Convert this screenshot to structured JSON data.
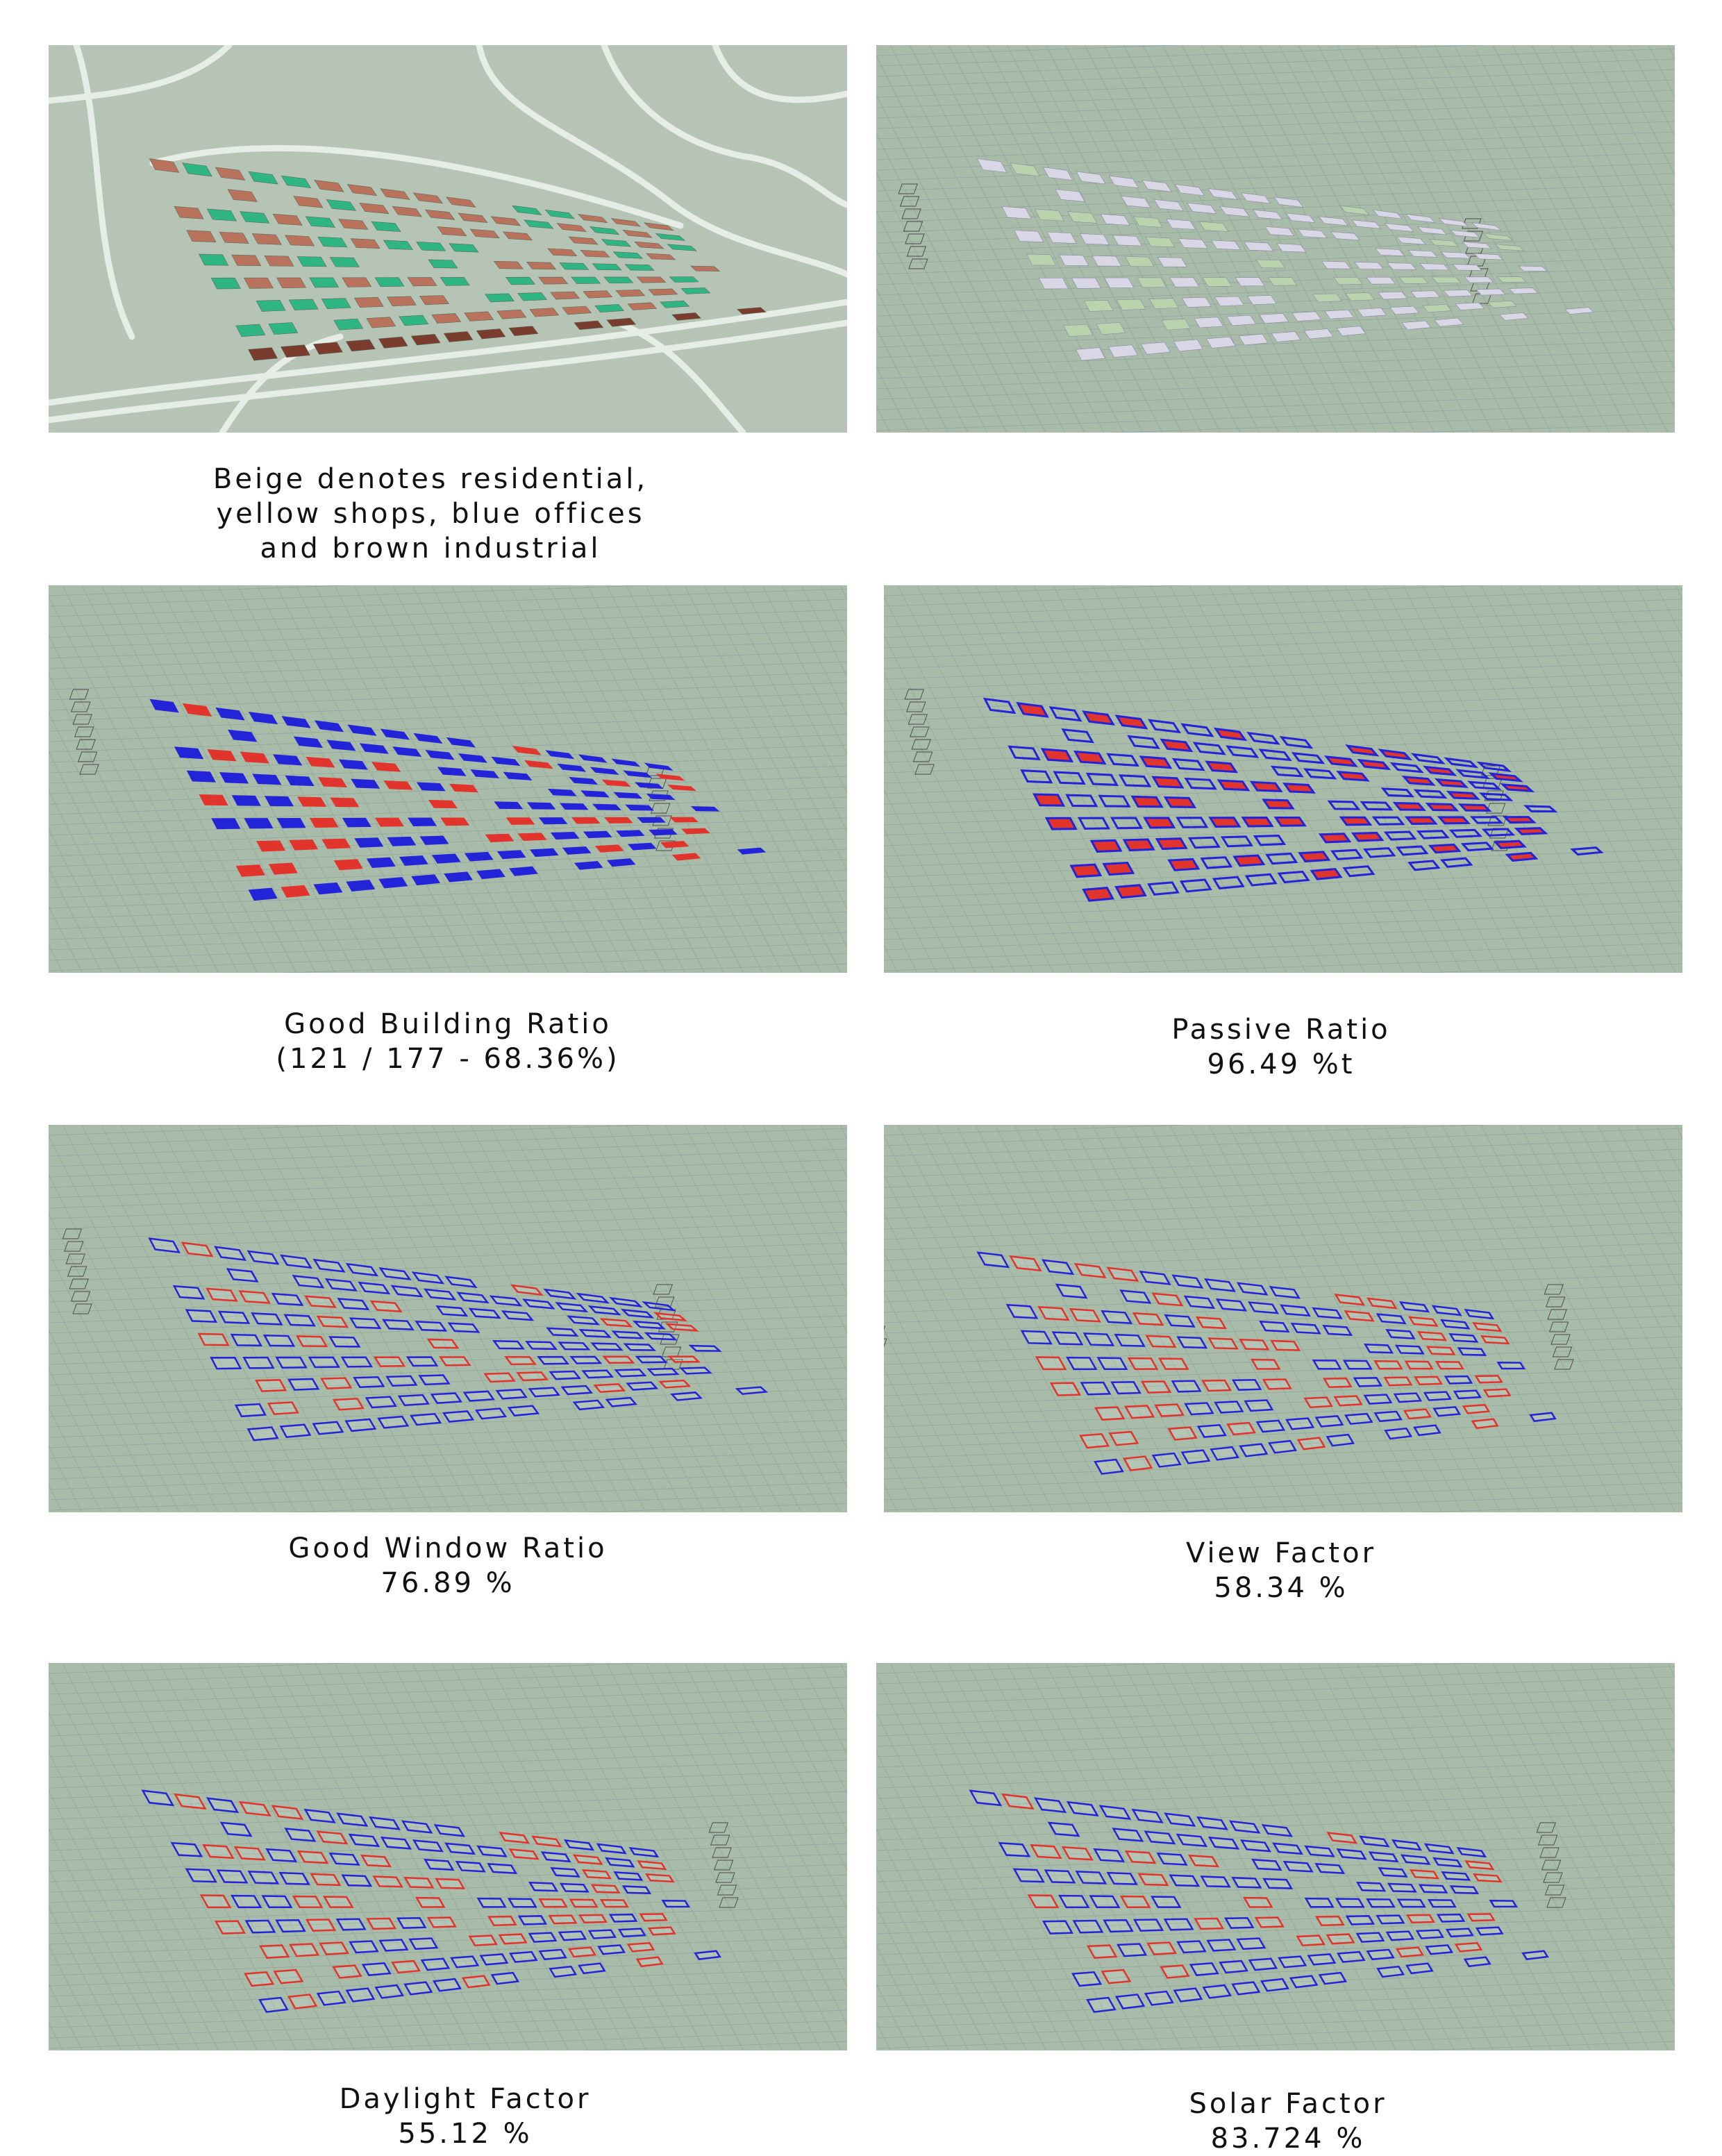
{
  "panels": [
    {
      "id": "landuse",
      "caption": [
        "Beige denotes residential,",
        "yellow shops, blue offices",
        "and brown industrial"
      ]
    },
    {
      "id": "massing",
      "caption": []
    },
    {
      "id": "good-building",
      "caption": [
        "Good Building Ratio",
        "(121 / 177 - 68.36%)"
      ]
    },
    {
      "id": "passive",
      "caption": [
        "Passive Ratio",
        "96.49 %t"
      ]
    },
    {
      "id": "good-window",
      "caption": [
        "Good Window Ratio",
        "76.89 %"
      ]
    },
    {
      "id": "view-factor",
      "caption": [
        "View Factor",
        "58.34 %"
      ]
    },
    {
      "id": "daylight",
      "caption": [
        "Daylight Factor",
        "55.12 %"
      ]
    },
    {
      "id": "solar",
      "caption": [
        "Solar Factor",
        "83.724 %"
      ]
    }
  ],
  "colors": {
    "background": "#a9bba9",
    "grid": "#8fa59a",
    "road": "#e6ece6",
    "residential_green": "#2fb584",
    "terracotta": "#b9725c",
    "industrial": "#7a3c2c",
    "massing": "#d9d7e6",
    "good_blue": "#2323d8",
    "bad_red": "#e0342c",
    "outline": "#4a4a4a"
  }
}
